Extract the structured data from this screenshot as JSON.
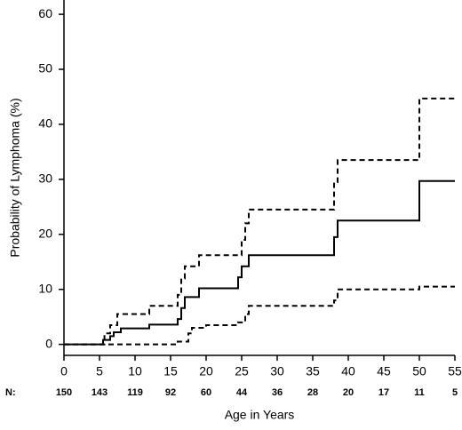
{
  "chart_data": {
    "type": "step",
    "xlabel": "Age in Years",
    "ylabel": "Probability of Lymphoma (%)",
    "xlim": [
      0,
      55
    ],
    "ylim": [
      -2,
      62.6
    ],
    "xticks": [
      0,
      5,
      10,
      15,
      20,
      25,
      30,
      35,
      40,
      45,
      50,
      55
    ],
    "yticks": [
      0,
      10,
      20,
      30,
      40,
      50,
      60
    ],
    "at_risk": {
      "label": "N:",
      "values": [
        150,
        143,
        119,
        92,
        60,
        44,
        36,
        28,
        20,
        17,
        11,
        5
      ]
    },
    "series": [
      {
        "color": "#000000",
        "line_style": "solid",
        "x": [
          0,
          5.5,
          6.5,
          7,
          8,
          12,
          16,
          16.5,
          17,
          19,
          24.5,
          25,
          26,
          38,
          38.5,
          50,
          55
        ],
        "values": [
          0,
          0.8,
          1.5,
          2.2,
          2.9,
          3.6,
          4.6,
          6.6,
          8.6,
          10.2,
          12.2,
          14.2,
          16.2,
          19.5,
          22.5,
          29.7,
          29.7
        ]
      },
      {
        "color": "#000000",
        "line_style": "dashed",
        "x": [
          0,
          5.7,
          6.5,
          7.5,
          12,
          16,
          16.5,
          17,
          19,
          25,
          25.5,
          26,
          38,
          38.5,
          50,
          55
        ],
        "values": [
          0,
          2,
          3.5,
          5.5,
          7,
          9,
          12,
          14.2,
          16.2,
          19,
          22,
          24.5,
          29.5,
          33.5,
          44.7,
          44.7
        ]
      },
      {
        "color": "#000000",
        "line_style": "dashed",
        "x": [
          0,
          16,
          17.5,
          18,
          20,
          24.5,
          25.5,
          26,
          38,
          38.5,
          50,
          55
        ],
        "values": [
          0,
          0.5,
          2,
          3,
          3.5,
          4,
          5.5,
          7,
          8,
          10,
          10.5,
          10.5
        ]
      }
    ]
  }
}
